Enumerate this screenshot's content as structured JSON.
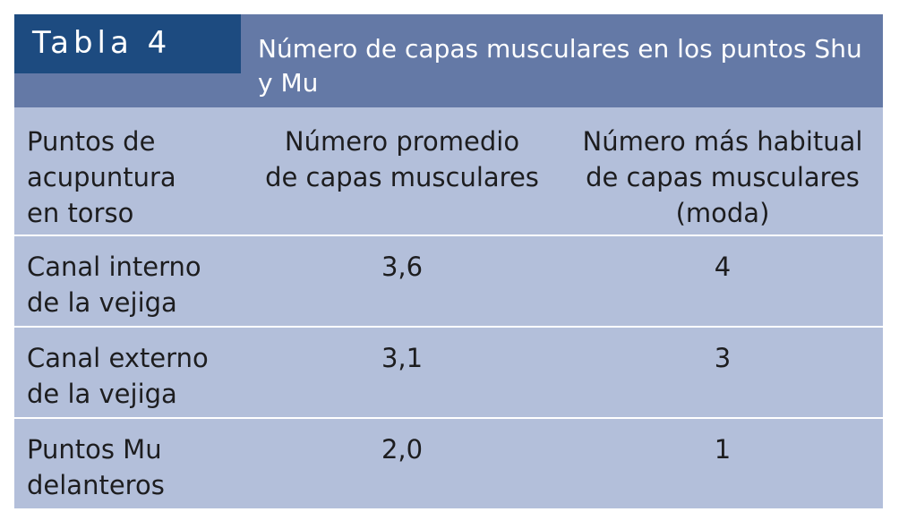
{
  "table": {
    "tag": "Tabla 4",
    "title": "Número de capas musculares en los puntos Shu y Mu",
    "headers": [
      "Puntos de\nacupuntura\nen torso",
      "Número promedio\nde capas musculares",
      "Número más habitual\nde capas musculares\n(moda)"
    ],
    "rows": [
      {
        "point": "Canal interno\nde la vejiga",
        "average": "3,6",
        "mode": "4"
      },
      {
        "point": "Canal externo\nde la vejiga",
        "average": "3,1",
        "mode": "3"
      },
      {
        "point": "Puntos Mu\ndelanteros",
        "average": "2,0",
        "mode": "1"
      }
    ]
  },
  "colors": {
    "tag_background": "#1d4b80",
    "header_background": "#6479a6",
    "table_background": "#b3bfda",
    "divider": "#ffffff",
    "text": "#1d1d1f"
  }
}
